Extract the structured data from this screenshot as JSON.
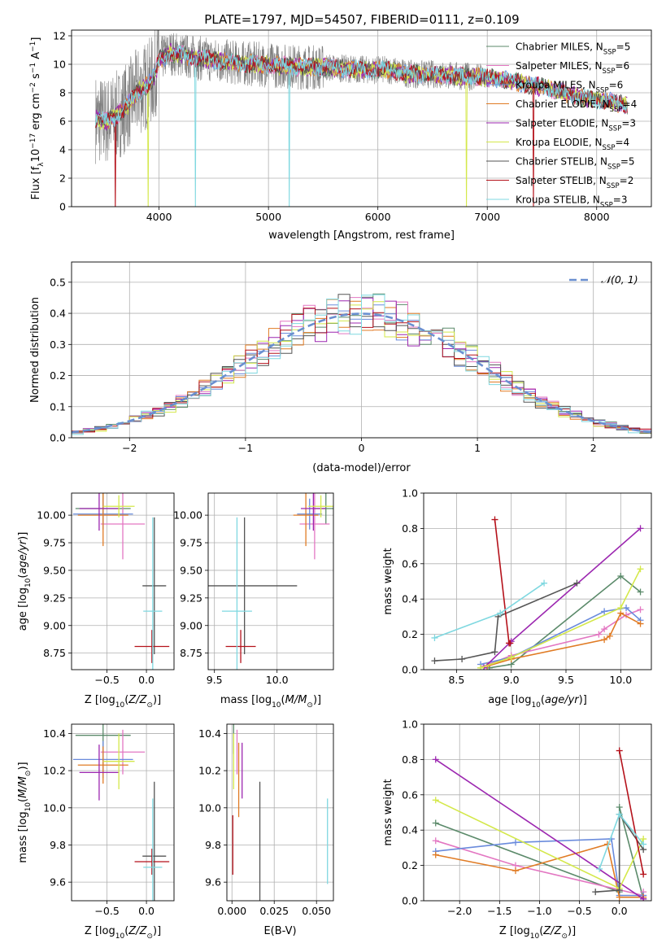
{
  "figure_title": "PLATE=1797, MJD=54507, FIBERID=0111, z=0.109",
  "colors": {
    "chabrier_miles": "#5b8a6a",
    "salpeter_miles": "#e377c2",
    "kroupa_miles": "#6a8bdc",
    "chabrier_elodie": "#e07b24",
    "salpeter_elodie": "#9c27b0",
    "kroupa_elodie": "#d4e84a",
    "chabrier_stelib": "#555555",
    "salpeter_stelib": "#b5121b",
    "kroupa_stelib": "#7fd8e0",
    "gaussian": "#6a8fd0",
    "data": "#7f7f7f"
  },
  "chart_data": [
    {
      "id": "spectrum",
      "type": "line",
      "xlabel": "wavelength [Angstrom, rest frame]",
      "ylabel": "Flux [f_λ 10^-17 erg cm^-2 s^-1 A^-1]",
      "xlim": [
        3200,
        8500
      ],
      "ylim": [
        0,
        12.4
      ],
      "xticks": [
        4000,
        5000,
        6000,
        7000,
        8000
      ],
      "yticks": [
        0,
        2,
        4,
        6,
        8,
        10,
        12
      ],
      "legend_position": "top-right",
      "legend": [
        {
          "label": "Chabrier MILES, N",
          "sub": "SSP",
          "tail": "=5",
          "color": "#5b8a6a"
        },
        {
          "label": "Salpeter MILES, N",
          "sub": "SSP",
          "tail": "=6",
          "color": "#e377c2"
        },
        {
          "label": "Kroupa MILES, N",
          "sub": "SSP",
          "tail": "=6",
          "color": "#6a8bdc"
        },
        {
          "label": "Chabrier ELODIE, N",
          "sub": "SSP",
          "tail": "=4",
          "color": "#e07b24"
        },
        {
          "label": "Salpeter ELODIE, N",
          "sub": "SSP",
          "tail": "=3",
          "color": "#9c27b0"
        },
        {
          "label": "Kroupa ELODIE, N",
          "sub": "SSP",
          "tail": "=4",
          "color": "#d4e84a"
        },
        {
          "label": "Chabrier STELIB, N",
          "sub": "SSP",
          "tail": "=5",
          "color": "#555555"
        },
        {
          "label": "Salpeter STELIB, N",
          "sub": "SSP",
          "tail": "=2",
          "color": "#b5121b"
        },
        {
          "label": "Kroupa STELIB, N",
          "sub": "SSP",
          "tail": "=3",
          "color": "#7fd8e0"
        }
      ],
      "model_continuum": {
        "x": [
          3420,
          3500,
          3600,
          3700,
          3800,
          3900,
          3950,
          4000,
          4100,
          4300,
          4500,
          4700,
          4900,
          5100,
          5300,
          5500,
          5700,
          5900,
          6100,
          6300,
          6500,
          6700,
          6900,
          7100,
          7300,
          7500,
          7700,
          7900,
          8100,
          8280
        ],
        "y": [
          6.2,
          6.0,
          6.3,
          7.0,
          8.0,
          8.6,
          9.0,
          10.3,
          10.8,
          10.5,
          10.3,
          10.1,
          10.0,
          9.9,
          9.8,
          9.8,
          9.7,
          9.6,
          9.6,
          9.3,
          9.3,
          9.2,
          9.1,
          9.0,
          8.7,
          8.4,
          8.0,
          7.6,
          7.4,
          7.1
        ]
      }
    },
    {
      "id": "residuals",
      "type": "histogram",
      "xlabel": "(data-model)/error",
      "ylabel": "Normed distribution",
      "xlim": [
        -2.5,
        2.5
      ],
      "ylim": [
        0,
        0.565
      ],
      "xticks": [
        -2,
        -1,
        0,
        1,
        2
      ],
      "yticks": [
        0.0,
        0.1,
        0.2,
        0.3,
        0.4,
        0.5
      ],
      "legend_position": "top-right",
      "legend": [
        {
          "label": "𝒩(0, 1)",
          "color": "#6a8fd0"
        }
      ],
      "bin_edges_range": [
        -2.5,
        2.5
      ],
      "bins": 50,
      "gaussian_curve": {
        "mean": 0,
        "sigma": 1
      }
    },
    {
      "id": "age_vs_Z",
      "type": "errorbar",
      "xlabel": "Z [log10(Z/Z⊙)]",
      "ylabel": "age [log10(age/yr)]",
      "xlim": [
        -0.95,
        0.35
      ],
      "ylim": [
        8.6,
        10.2
      ],
      "xticks": [
        -0.5,
        0.0
      ],
      "yticks": [
        8.75,
        9.0,
        9.25,
        9.5,
        9.75,
        10.0
      ],
      "points": [
        {
          "x": -0.55,
          "y": 10.06,
          "xerr": 0.35,
          "yerr": 0.14,
          "color": "#5b8a6a"
        },
        {
          "x": -0.3,
          "y": 9.92,
          "xerr": 0.28,
          "yerr": 0.32,
          "color": "#e377c2"
        },
        {
          "x": -0.55,
          "y": 10.01,
          "xerr": 0.38,
          "yerr": 0.14,
          "color": "#6a8bdc"
        },
        {
          "x": -0.55,
          "y": 10.0,
          "xerr": 0.32,
          "yerr": 0.28,
          "color": "#e07b24"
        },
        {
          "x": -0.6,
          "y": 10.06,
          "xerr": 0.25,
          "yerr": 0.2,
          "color": "#9c27b0"
        },
        {
          "x": -0.35,
          "y": 10.08,
          "xerr": 0.2,
          "yerr": 0.1,
          "color": "#d4e84a"
        },
        {
          "x": 0.1,
          "y": 9.36,
          "xerr": 0.15,
          "yerr": 0.62,
          "color": "#555555"
        },
        {
          "x": 0.07,
          "y": 8.81,
          "xerr": 0.22,
          "yerr": 0.15,
          "color": "#b5121b"
        },
        {
          "x": 0.08,
          "y": 9.13,
          "xerr": 0.12,
          "yerr": 0.85,
          "color": "#7fd8e0"
        }
      ]
    },
    {
      "id": "age_vs_mass",
      "type": "errorbar",
      "xlabel": "mass [log10(M/M⊙)]",
      "ylabel": "",
      "xlim": [
        9.45,
        10.45
      ],
      "ylim": [
        8.6,
        10.2
      ],
      "xticks": [
        9.5,
        10.0
      ],
      "yticks": [
        8.75,
        9.0,
        9.25,
        9.5,
        9.75,
        10.0
      ],
      "points": [
        {
          "x": 10.39,
          "y": 10.06,
          "xerr": 0.1,
          "yerr": 0.14,
          "color": "#5b8a6a"
        },
        {
          "x": 10.3,
          "y": 9.92,
          "xerr": 0.12,
          "yerr": 0.32,
          "color": "#e377c2"
        },
        {
          "x": 10.26,
          "y": 10.01,
          "xerr": 0.1,
          "yerr": 0.14,
          "color": "#6a8bdc"
        },
        {
          "x": 10.23,
          "y": 10.0,
          "xerr": 0.1,
          "yerr": 0.28,
          "color": "#e07b24"
        },
        {
          "x": 10.29,
          "y": 10.06,
          "xerr": 0.1,
          "yerr": 0.2,
          "color": "#9c27b0"
        },
        {
          "x": 10.35,
          "y": 10.08,
          "xerr": 0.1,
          "yerr": 0.1,
          "color": "#d4e84a"
        },
        {
          "x": 9.74,
          "y": 9.36,
          "xerr": 0.42,
          "yerr": 0.62,
          "color": "#555555"
        },
        {
          "x": 9.71,
          "y": 8.81,
          "xerr": 0.12,
          "yerr": 0.15,
          "color": "#b5121b"
        },
        {
          "x": 9.68,
          "y": 9.13,
          "xerr": 0.12,
          "yerr": 0.85,
          "color": "#7fd8e0"
        }
      ]
    },
    {
      "id": "weight_vs_age",
      "type": "line",
      "xlabel": "age [log10(age/yr)]",
      "ylabel": "mass weight",
      "xlim": [
        8.2,
        10.28
      ],
      "ylim": [
        0,
        1.0
      ],
      "xticks": [
        8.5,
        9.0,
        9.5,
        10.0
      ],
      "yticks": [
        0.0,
        0.2,
        0.4,
        0.6,
        0.8,
        1.0
      ],
      "series": [
        {
          "color": "#5b8a6a",
          "x": [
            8.8,
            9.0,
            10.0,
            10.18
          ],
          "y": [
            0.01,
            0.03,
            0.53,
            0.44
          ]
        },
        {
          "color": "#e377c2",
          "x": [
            8.75,
            9.0,
            9.8,
            9.85,
            10.05,
            10.18
          ],
          "y": [
            0.02,
            0.08,
            0.2,
            0.23,
            0.31,
            0.34
          ]
        },
        {
          "color": "#6a8bdc",
          "x": [
            8.72,
            9.0,
            9.85,
            10.05,
            10.18
          ],
          "y": [
            0.03,
            0.07,
            0.33,
            0.35,
            0.28
          ]
        },
        {
          "color": "#e07b24",
          "x": [
            8.78,
            9.0,
            9.85,
            9.9,
            10.0,
            10.18
          ],
          "y": [
            0.02,
            0.06,
            0.17,
            0.19,
            0.32,
            0.26
          ]
        },
        {
          "color": "#9c27b0",
          "x": [
            8.75,
            9.0,
            10.18
          ],
          "y": [
            0.01,
            0.16,
            0.8
          ]
        },
        {
          "color": "#d4e84a",
          "x": [
            8.72,
            9.0,
            10.0,
            10.18
          ],
          "y": [
            0.01,
            0.07,
            0.35,
            0.57
          ]
        },
        {
          "color": "#555555",
          "x": [
            8.3,
            8.55,
            8.85,
            8.88,
            9.6
          ],
          "y": [
            0.05,
            0.06,
            0.1,
            0.3,
            0.49
          ]
        },
        {
          "color": "#b5121b",
          "x": [
            8.85,
            8.98,
            8.99
          ],
          "y": [
            0.85,
            0.15,
            0.15
          ]
        },
        {
          "color": "#7fd8e0",
          "x": [
            8.3,
            8.9,
            9.3
          ],
          "y": [
            0.18,
            0.32,
            0.49
          ]
        }
      ]
    },
    {
      "id": "mass_vs_Z",
      "type": "errorbar",
      "xlabel": "Z [log10(Z/Z⊙)]",
      "ylabel": "mass [log10(M/M⊙)]",
      "xlim": [
        -0.95,
        0.35
      ],
      "ylim": [
        9.5,
        10.45
      ],
      "xticks": [
        -0.5,
        0.0
      ],
      "yticks": [
        9.6,
        9.8,
        10.0,
        10.2,
        10.4
      ],
      "points": [
        {
          "x": -0.55,
          "y": 10.39,
          "xerr": 0.35,
          "yerr": 0.1,
          "color": "#5b8a6a"
        },
        {
          "x": -0.3,
          "y": 10.3,
          "xerr": 0.28,
          "yerr": 0.12,
          "color": "#e377c2"
        },
        {
          "x": -0.55,
          "y": 10.26,
          "xerr": 0.38,
          "yerr": 0.1,
          "color": "#6a8bdc"
        },
        {
          "x": -0.55,
          "y": 10.23,
          "xerr": 0.32,
          "yerr": 0.1,
          "color": "#e07b24"
        },
        {
          "x": -0.6,
          "y": 10.19,
          "xerr": 0.25,
          "yerr": 0.15,
          "color": "#9c27b0"
        },
        {
          "x": -0.35,
          "y": 10.25,
          "xerr": 0.2,
          "yerr": 0.15,
          "color": "#d4e84a"
        },
        {
          "x": 0.1,
          "y": 9.74,
          "xerr": 0.15,
          "yerr": 0.4,
          "color": "#555555"
        },
        {
          "x": 0.07,
          "y": 9.71,
          "xerr": 0.22,
          "yerr": 0.07,
          "color": "#b5121b"
        },
        {
          "x": 0.08,
          "y": 9.68,
          "xerr": 0.12,
          "yerr": 0.37,
          "color": "#7fd8e0"
        }
      ]
    },
    {
      "id": "mass_vs_ebv",
      "type": "errorbar",
      "xlabel": "E(B-V)",
      "ylabel": "",
      "xlim": [
        -0.003,
        0.06
      ],
      "ylim": [
        9.5,
        10.45
      ],
      "xticks": [
        0.0,
        0.025,
        0.05
      ],
      "xtick_labels": [
        "0.000",
        "0.025",
        "0.050"
      ],
      "yticks": [
        9.6,
        9.8,
        10.0,
        10.2,
        10.4
      ],
      "points": [
        {
          "x": 0.001,
          "y": 10.39,
          "xerr": 0,
          "yerr": 0.1,
          "color": "#5b8a6a"
        },
        {
          "x": 0.003,
          "y": 10.3,
          "xerr": 0,
          "yerr": 0.12,
          "color": "#e377c2"
        },
        {
          "x": 0.004,
          "y": 10.15,
          "xerr": 0,
          "yerr": 0.2,
          "color": "#e07b24"
        },
        {
          "x": 0.006,
          "y": 10.2,
          "xerr": 0,
          "yerr": 0.15,
          "color": "#9c27b0"
        },
        {
          "x": 0.001,
          "y": 10.25,
          "xerr": 0,
          "yerr": 0.15,
          "color": "#d4e84a"
        },
        {
          "x": 0.0165,
          "y": 9.74,
          "xerr": 0,
          "yerr": 0.4,
          "color": "#555555"
        },
        {
          "x": 0.0005,
          "y": 9.8,
          "xerr": 0,
          "yerr": 0.16,
          "color": "#b5121b"
        },
        {
          "x": 0.0565,
          "y": 9.82,
          "xerr": 0,
          "yerr": 0.23,
          "color": "#7fd8e0"
        }
      ]
    },
    {
      "id": "weight_vs_Z",
      "type": "line",
      "xlabel": "Z [log10(Z/Z⊙)]",
      "ylabel": "mass weight",
      "xlim": [
        -2.45,
        0.4
      ],
      "ylim": [
        0,
        1.0
      ],
      "xticks": [
        -2.0,
        -1.5,
        -1.0,
        -0.5,
        0.0
      ],
      "yticks": [
        0.0,
        0.2,
        0.4,
        0.6,
        0.8,
        1.0
      ],
      "series": [
        {
          "color": "#5b8a6a",
          "x": [
            -2.3,
            0.0,
            0.0,
            0.3
          ],
          "y": [
            0.44,
            0.05,
            0.53,
            0.01
          ]
        },
        {
          "color": "#e377c2",
          "x": [
            -2.3,
            -1.3,
            0.3,
            0.3
          ],
          "y": [
            0.34,
            0.2,
            0.03,
            0.05
          ]
        },
        {
          "color": "#6a8bdc",
          "x": [
            -2.3,
            -1.3,
            -0.1,
            0.0,
            0.3
          ],
          "y": [
            0.28,
            0.33,
            0.35,
            0.03,
            0.03
          ]
        },
        {
          "color": "#e07b24",
          "x": [
            -2.3,
            -1.3,
            -0.15,
            0.0,
            0.3
          ],
          "y": [
            0.26,
            0.17,
            0.32,
            0.02,
            0.02
          ]
        },
        {
          "color": "#9c27b0",
          "x": [
            -2.3,
            0.3
          ],
          "y": [
            0.8,
            0.01
          ]
        },
        {
          "color": "#d4e84a",
          "x": [
            -2.3,
            0.0,
            0.3
          ],
          "y": [
            0.57,
            0.07,
            0.35
          ]
        },
        {
          "color": "#555555",
          "x": [
            -0.3,
            0.0,
            0.0,
            0.3
          ],
          "y": [
            0.05,
            0.06,
            0.49,
            0.29
          ]
        },
        {
          "color": "#b5121b",
          "x": [
            0.0,
            0.3
          ],
          "y": [
            0.85,
            0.15
          ]
        },
        {
          "color": "#7fd8e0",
          "x": [
            -0.25,
            0.0,
            0.3
          ],
          "y": [
            0.18,
            0.49,
            0.32
          ]
        }
      ]
    }
  ]
}
